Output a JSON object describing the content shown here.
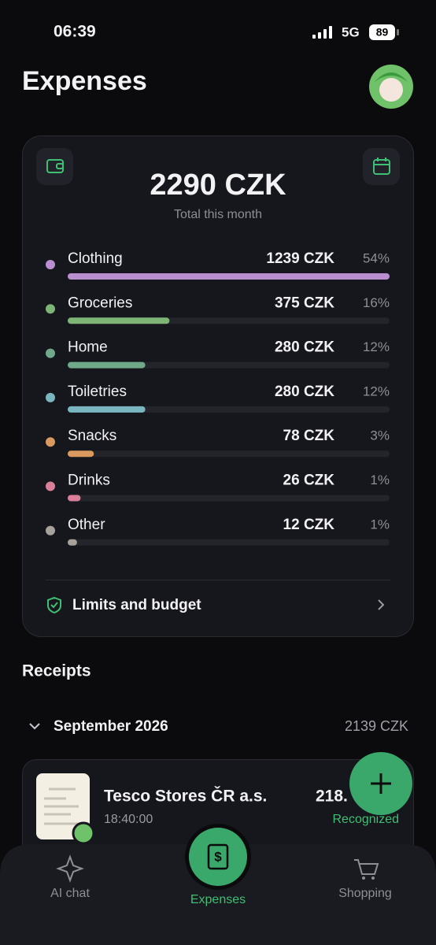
{
  "status_bar": {
    "time": "06:39",
    "network": "5G",
    "battery": "89"
  },
  "header": {
    "title": "Expenses"
  },
  "summary": {
    "total": "2290 CZK",
    "subtitle": "Total this month",
    "categories": [
      {
        "name": "Clothing",
        "amount": 1239,
        "amount_label": "1239 CZK",
        "share": "54%",
        "color": "#b98fd0"
      },
      {
        "name": "Groceries",
        "amount": 375,
        "amount_label": "375 CZK",
        "share": "16%",
        "color": "#7fb477"
      },
      {
        "name": "Home",
        "amount": 280,
        "amount_label": "280 CZK",
        "share": "12%",
        "color": "#6fa98a"
      },
      {
        "name": "Toiletries",
        "amount": 280,
        "amount_label": "280 CZK",
        "share": "12%",
        "color": "#7ab6bf"
      },
      {
        "name": "Snacks",
        "amount": 78,
        "amount_label": "78 CZK",
        "share": "3%",
        "color": "#d99a5f"
      },
      {
        "name": "Drinks",
        "amount": 26,
        "amount_label": "26 CZK",
        "share": "1%",
        "color": "#d97f9a"
      },
      {
        "name": "Other",
        "amount": 12,
        "amount_label": "12 CZK",
        "share": "1%",
        "color": "#a8a39a"
      }
    ],
    "limits_link": "Limits and budget"
  },
  "receipts": {
    "title": "Receipts",
    "month": "September 2026",
    "month_total": "2139 CZK",
    "items": [
      {
        "store": "Tesco Stores ČR a.s.",
        "time": "18:40:00",
        "amount": "218.",
        "status": "Recognized"
      }
    ]
  },
  "nav": {
    "items": [
      "AI chat",
      "Expenses",
      "Shopping"
    ]
  }
}
